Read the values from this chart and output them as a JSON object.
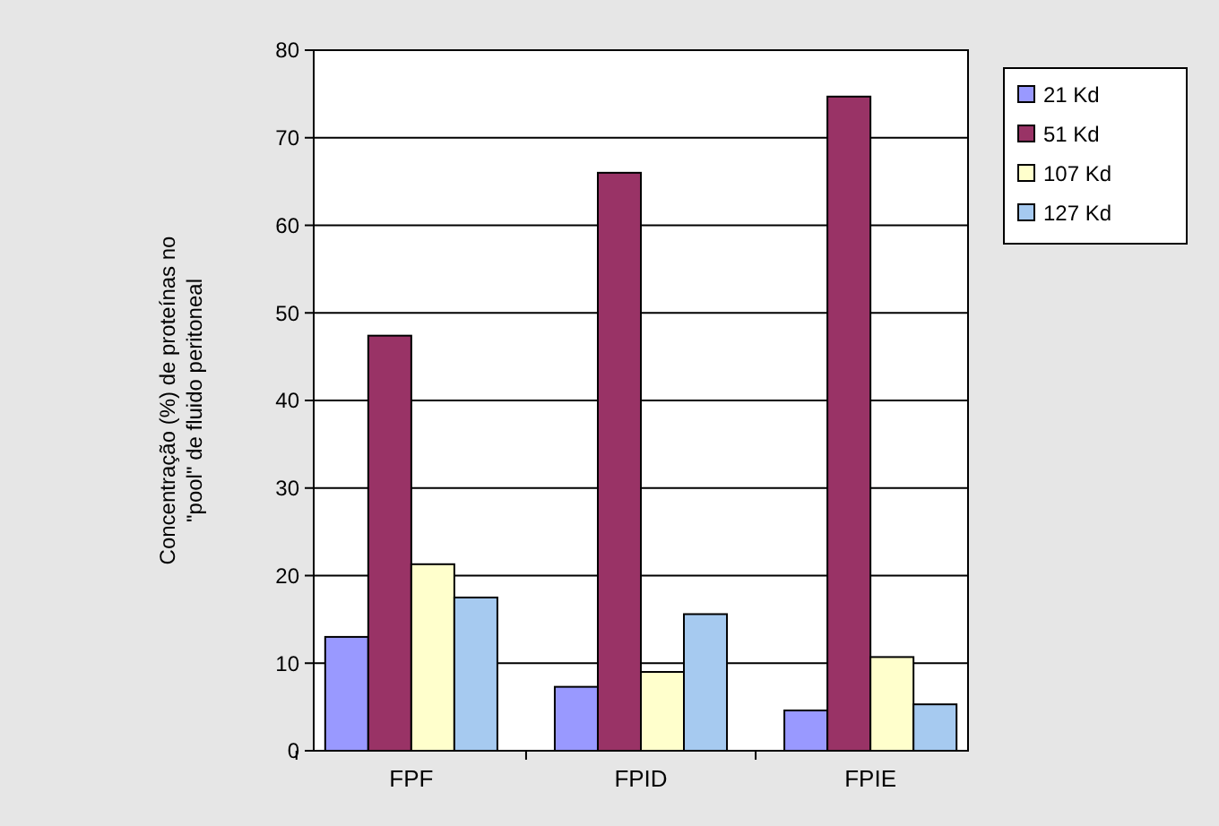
{
  "chart_data": {
    "type": "bar",
    "ylabel": "Concentração (%) de proteínas no \"pool\" de fluido peritoneal",
    "categories": [
      "FPF",
      "FPID",
      "FPIE"
    ],
    "series": [
      {
        "name": "21 Kd",
        "color": "#9999ff",
        "values": [
          13,
          7.3,
          4.6
        ]
      },
      {
        "name": "51 Kd",
        "color": "#993366",
        "values": [
          47.4,
          66,
          74.7
        ]
      },
      {
        "name": "107 Kd",
        "color": "#ffffcc",
        "values": [
          21.3,
          9,
          10.7
        ]
      },
      {
        "name": "127 Kd",
        "color": "#a6caf0",
        "values": [
          17.5,
          15.6,
          5.3
        ]
      }
    ],
    "ylim": [
      0,
      80
    ],
    "yticks": [
      0,
      10,
      20,
      30,
      40,
      50,
      60,
      70,
      80
    ],
    "grid": "y",
    "legend": "right"
  }
}
